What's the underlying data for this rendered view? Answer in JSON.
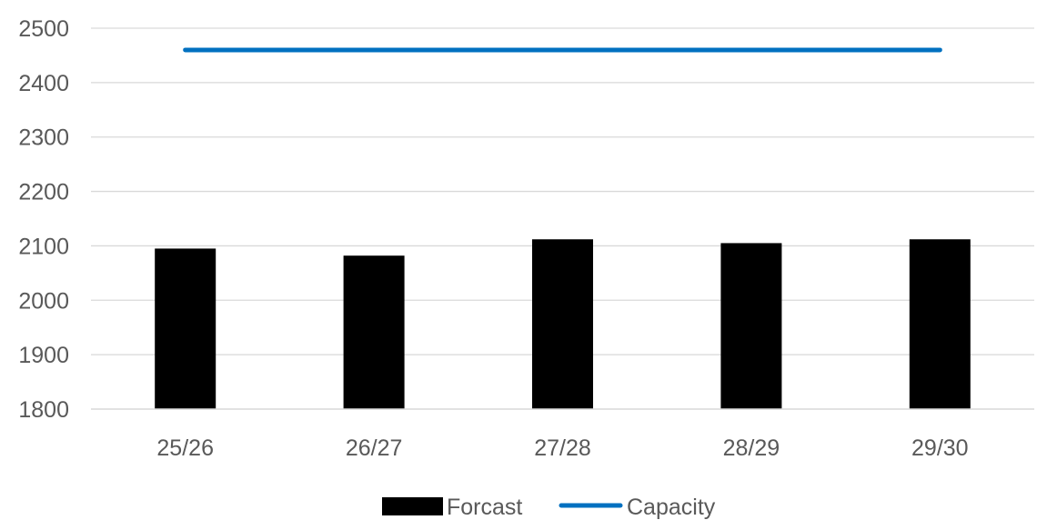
{
  "chart_data": {
    "type": "bar",
    "title": "",
    "xlabel": "",
    "ylabel": "",
    "categories": [
      "25/26",
      "26/27",
      "27/28",
      "28/29",
      "29/30"
    ],
    "ylim": [
      1800,
      2500
    ],
    "yticks": [
      1800,
      1900,
      2000,
      2100,
      2200,
      2300,
      2400,
      2500
    ],
    "grid": true,
    "legend_position": "bottom",
    "series": [
      {
        "name": "Forcast",
        "type": "bar",
        "color": "#000000",
        "values": [
          2095,
          2082,
          2112,
          2105,
          2112
        ]
      },
      {
        "name": "Capacity",
        "type": "line",
        "color": "#0070C0",
        "values": [
          2460,
          2460,
          2460,
          2460,
          2460
        ]
      }
    ]
  }
}
